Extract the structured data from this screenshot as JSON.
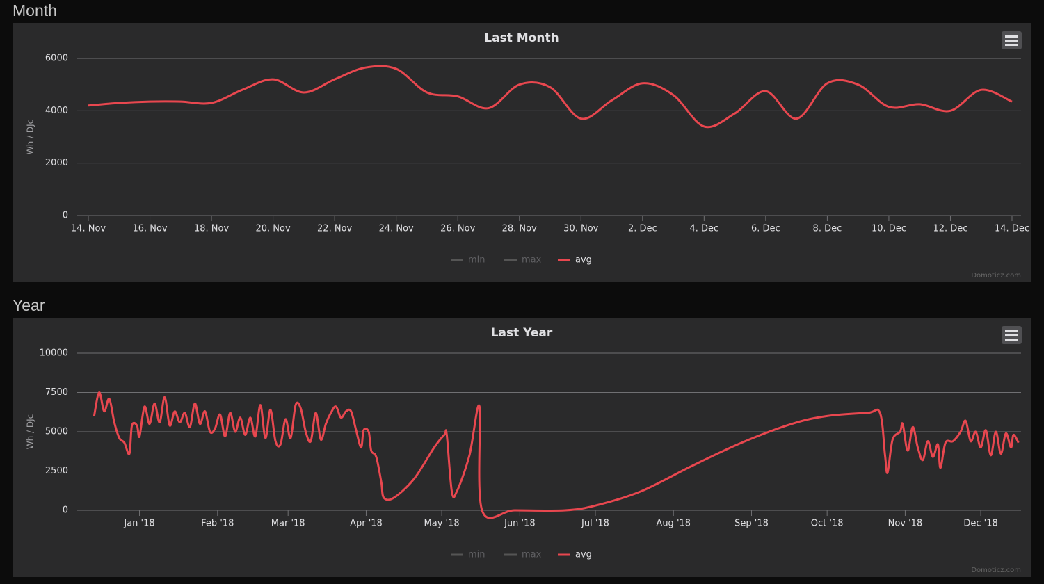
{
  "chart_data": [
    {
      "type": "line",
      "section": "Month",
      "title": "Last Month",
      "y_label": "Wh / DJc",
      "credits": "Domoticz.com",
      "categories": [
        "14. Nov",
        null,
        "16. Nov",
        null,
        "18. Nov",
        null,
        "20. Nov",
        null,
        "22. Nov",
        null,
        "24. Nov",
        null,
        "26. Nov",
        null,
        "28. Nov",
        null,
        "30. Nov",
        null,
        "2. Dec",
        null,
        "4. Dec",
        null,
        "6. Dec",
        null,
        "8. Dec",
        null,
        "10. Dec",
        null,
        "12. Dec",
        null,
        "14. Dec"
      ],
      "series": [
        {
          "name": "avg",
          "color": "#e8474f",
          "values": [
            4200,
            4300,
            4350,
            4350,
            4300,
            4800,
            5200,
            4700,
            5200,
            5650,
            5600,
            4700,
            4550,
            4100,
            5000,
            4900,
            3700,
            4400,
            5050,
            4600,
            3400,
            3900,
            4750,
            3700,
            5050,
            5000,
            4150,
            4250,
            4000,
            4800,
            4350
          ]
        }
      ],
      "hidden_series": [
        {
          "name": "min",
          "color": "#555555"
        },
        {
          "name": "max",
          "color": "#555555"
        }
      ],
      "ylim": [
        0,
        6000
      ],
      "yticks": [
        0,
        2000,
        4000,
        6000
      ],
      "grid": true
    },
    {
      "type": "line",
      "section": "Year",
      "title": "Last Year",
      "y_label": "Wh / DJc",
      "credits": "Domoticz.com",
      "x": [
        13,
        15,
        17,
        19,
        21,
        23,
        25,
        27,
        28,
        30,
        31,
        33,
        35,
        37,
        39,
        41,
        43,
        45,
        47,
        49,
        51,
        53,
        55,
        57,
        59,
        61,
        63,
        65,
        67,
        69,
        71,
        73,
        75,
        77,
        79,
        81,
        83,
        85,
        87,
        89,
        91,
        93,
        95,
        97,
        99,
        101,
        103,
        105,
        107,
        109,
        111,
        113,
        115,
        117,
        119,
        120,
        122,
        123,
        125,
        127,
        128,
        132,
        140,
        148,
        152,
        153,
        155,
        157,
        162,
        166,
        167,
        180,
        200,
        212,
        230,
        250,
        270,
        290,
        304,
        320,
        325,
        327,
        328,
        330,
        333,
        334,
        336,
        338,
        340,
        342,
        344,
        346,
        348,
        349,
        351,
        354,
        357,
        359,
        361,
        363,
        365,
        367,
        369,
        371,
        373,
        375,
        377,
        378,
        380
      ],
      "series": [
        {
          "name": "avg",
          "color": "#e8474f",
          "values": [
            6000,
            7500,
            6300,
            7100,
            5600,
            4600,
            4300,
            3600,
            5400,
            5400,
            4700,
            6600,
            5500,
            6800,
            5600,
            7200,
            5400,
            6300,
            5600,
            6200,
            5300,
            6800,
            5500,
            6300,
            5000,
            5200,
            6100,
            4700,
            6200,
            5000,
            5900,
            4800,
            5900,
            4700,
            6700,
            4600,
            6400,
            4400,
            4200,
            5800,
            4600,
            6700,
            6500,
            5000,
            4400,
            6200,
            4500,
            5500,
            6200,
            6600,
            5900,
            6300,
            6300,
            5100,
            4000,
            5100,
            5000,
            3800,
            3400,
            1800,
            800,
            800,
            2000,
            4000,
            4800,
            4800,
            1200,
            1200,
            3500,
            6600,
            0,
            0,
            0,
            300,
            1200,
            2800,
            4300,
            5500,
            6000,
            6200,
            6200,
            3500,
            2400,
            4500,
            5000,
            5500,
            3800,
            5300,
            4000,
            3200,
            4400,
            3400,
            4200,
            2700,
            4300,
            4400,
            5000,
            5700,
            4400,
            5000,
            4000,
            5100,
            3500,
            5000,
            3600,
            4900,
            4000,
            4800,
            4300
          ]
        }
      ],
      "hidden_series": [
        {
          "name": "min",
          "color": "#555555"
        },
        {
          "name": "max",
          "color": "#555555"
        }
      ],
      "xlim": [
        6,
        381
      ],
      "xticks": [
        {
          "value": 31,
          "label": "Jan '18"
        },
        {
          "value": 62,
          "label": "Feb '18"
        },
        {
          "value": 90,
          "label": "Mar '18"
        },
        {
          "value": 121,
          "label": "Apr '18"
        },
        {
          "value": 151,
          "label": "May '18"
        },
        {
          "value": 182,
          "label": "Jun '18"
        },
        {
          "value": 212,
          "label": "Jul '18"
        },
        {
          "value": 243,
          "label": "Aug '18"
        },
        {
          "value": 274,
          "label": "Sep '18"
        },
        {
          "value": 304,
          "label": "Oct '18"
        },
        {
          "value": 335,
          "label": "Nov '18"
        },
        {
          "value": 365,
          "label": "Dec '18"
        }
      ],
      "ylim": [
        0,
        10000
      ],
      "yticks": [
        0,
        2500,
        5000,
        7500,
        10000
      ],
      "grid": true
    }
  ]
}
